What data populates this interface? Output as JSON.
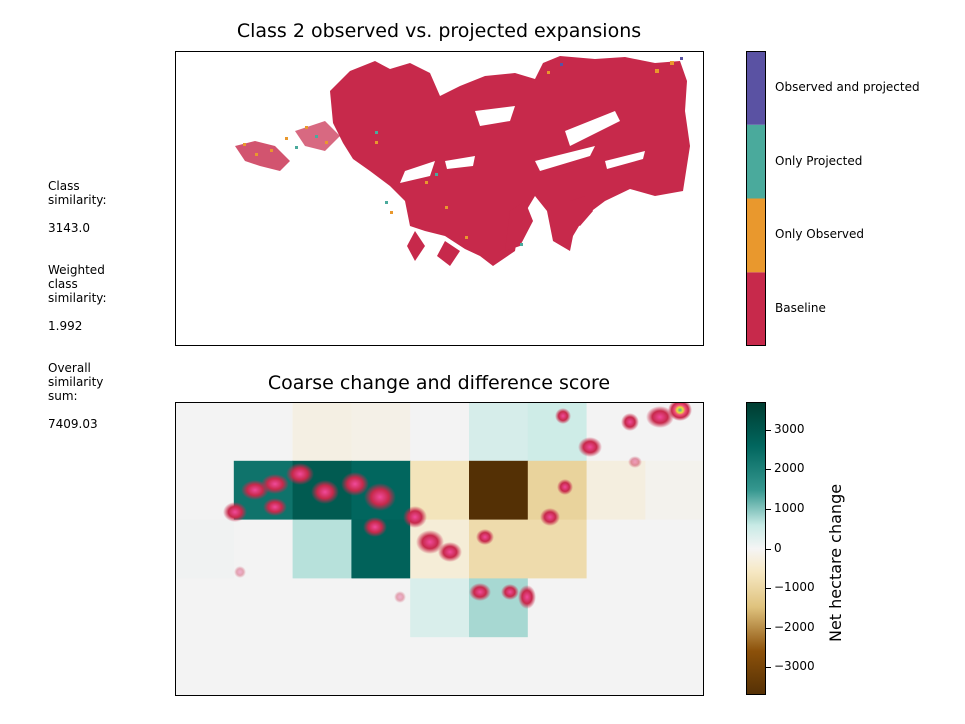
{
  "top_title": "Class 2 observed vs. projected expansions",
  "bottom_title": "Coarse change and difference score",
  "stats": {
    "class_similarity_label": "Class\nsimilarity:",
    "class_similarity_value": "3143.0",
    "weighted_label": "Weighted\nclass\nsimilarity:",
    "weighted_value": "1.992",
    "overall_label": "Overall\nsimilarity\nsum:",
    "overall_value": "7409.03"
  },
  "chart_data": [
    {
      "type": "heatmap",
      "title": "Class 2 observed vs. projected expansions",
      "legend": {
        "placement": "right",
        "categories": [
          {
            "label": "Baseline",
            "color": "#c7294b"
          },
          {
            "label": "Only Observed",
            "color": "#e9982d"
          },
          {
            "label": "Only Projected",
            "color": "#4aaa9c"
          },
          {
            "label": "Observed and projected",
            "color": "#5a52a3"
          }
        ]
      }
    },
    {
      "type": "heatmap",
      "title": "Coarse change and difference score",
      "colorbar_label": "Net hectare change",
      "colorbar_ticks": [
        "3000",
        "2000",
        "1000",
        "0",
        "−1000",
        "−2000",
        "−3000"
      ],
      "colorbar_range": [
        -3700,
        3700
      ],
      "grid_rows": 5,
      "grid_cols": 9,
      "cell_values": [
        [
          0,
          0,
          -200,
          -150,
          0,
          400,
          500,
          0,
          0
        ],
        [
          0,
          2300,
          2900,
          2600,
          -700,
          -3700,
          -1100,
          -250,
          -70
        ],
        [
          40,
          0,
          700,
          2700,
          -350,
          -900,
          -900,
          0,
          0
        ],
        [
          0,
          0,
          0,
          0,
          350,
          800,
          0,
          0,
          0
        ],
        [
          0,
          0,
          0,
          0,
          0,
          0,
          0,
          0,
          0
        ]
      ]
    }
  ]
}
